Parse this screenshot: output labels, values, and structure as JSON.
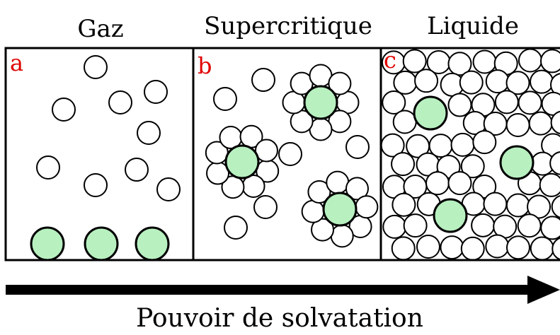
{
  "panels": [
    {
      "title": "Gaz",
      "letter": "a"
    },
    {
      "title": "Supercritique",
      "letter": "b"
    },
    {
      "title": "Liquide",
      "letter": "c"
    }
  ],
  "arrow_label": "Pouvoir de solvatation"
}
